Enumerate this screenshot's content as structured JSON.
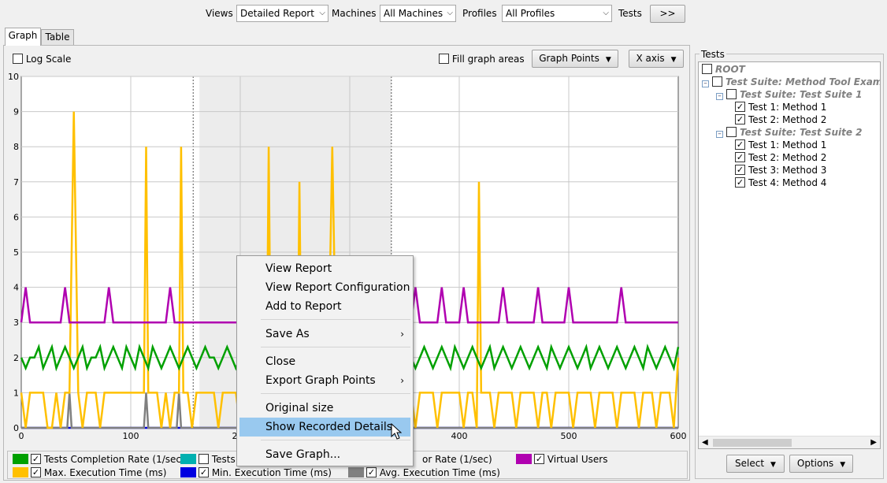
{
  "toolbar": {
    "views_label": "Views",
    "views_value": "Detailed Report",
    "machines_label": "Machines",
    "machines_value": "All Machines",
    "profiles_label": "Profiles",
    "profiles_value": "All Profiles",
    "tests_label": "Tests",
    "tests_button": ">>"
  },
  "tabs": [
    {
      "label": "Graph",
      "active": true
    },
    {
      "label": "Table",
      "active": false
    }
  ],
  "graph_options": {
    "log_scale_label": "Log Scale",
    "log_scale_checked": false,
    "fill_areas_label": "Fill graph areas",
    "fill_areas_checked": false,
    "graph_points_button": "Graph Points",
    "x_axis_button": "X axis"
  },
  "chart_data": {
    "type": "line",
    "xlim": [
      0,
      600
    ],
    "ylim": [
      0,
      10
    ],
    "x_ticks": [
      "0",
      "100",
      "200",
      "300",
      "400",
      "500",
      "600"
    ],
    "y_ticks": [
      "0",
      "1",
      "2",
      "3",
      "4",
      "5",
      "6",
      "7",
      "8",
      "9",
      "10"
    ],
    "shaded_region": [
      157,
      338
    ],
    "series": [
      {
        "name": "Virtual Users",
        "color": "#b000b0",
        "x": [
          0,
          4,
          8,
          12,
          16,
          20,
          24,
          28,
          32,
          36,
          40,
          44,
          48,
          52,
          56,
          60,
          64,
          68,
          72,
          76,
          80,
          84,
          88,
          92,
          96,
          100,
          104,
          108,
          112,
          116,
          120,
          124,
          128,
          132,
          136,
          140,
          144,
          148,
          152,
          156,
          160,
          164,
          168,
          172,
          176,
          180,
          184,
          188,
          192,
          196,
          200,
          204,
          208,
          212,
          216,
          220,
          224,
          228,
          232,
          236,
          240,
          244,
          248,
          252,
          256,
          260,
          264,
          268,
          272,
          276,
          280,
          284,
          288,
          292,
          296,
          300,
          304,
          308,
          312,
          316,
          320,
          324,
          328,
          332,
          336,
          340,
          344,
          348,
          352,
          356,
          360,
          364,
          368,
          372,
          376,
          380,
          384,
          388,
          392,
          396,
          400,
          404,
          408,
          412,
          416,
          420,
          424,
          428,
          432,
          436,
          440,
          444,
          448,
          452,
          456,
          460,
          464,
          468,
          472,
          476,
          480,
          484,
          488,
          492,
          496,
          500,
          504,
          508,
          512,
          516,
          520,
          524,
          528,
          532,
          536,
          540,
          544,
          548,
          552,
          556,
          560,
          564,
          568,
          572,
          576,
          580,
          584,
          588,
          592,
          596,
          600
        ],
        "values": [
          3,
          4,
          3,
          3,
          3,
          3,
          3,
          3,
          3,
          3,
          4,
          3,
          3,
          3,
          3,
          3,
          3,
          3,
          3,
          3,
          4,
          3,
          3,
          3,
          3,
          3,
          3,
          3,
          3,
          3,
          3,
          3,
          3,
          3,
          4,
          3,
          3,
          3,
          3,
          3,
          3,
          3,
          3,
          3,
          3,
          3,
          3,
          3,
          3,
          3,
          3,
          3,
          3,
          3,
          3,
          3,
          3,
          3,
          3,
          3,
          3,
          3,
          3,
          3,
          4,
          3,
          3,
          3,
          3,
          3,
          3,
          3,
          3,
          3,
          3,
          3,
          3,
          3,
          3,
          3,
          3,
          3,
          3,
          3,
          3,
          3,
          3,
          3,
          3,
          3,
          4,
          3,
          3,
          3,
          3,
          3,
          4,
          3,
          3,
          3,
          3,
          4,
          3,
          3,
          3,
          3,
          3,
          3,
          3,
          3,
          4,
          3,
          3,
          3,
          3,
          3,
          3,
          3,
          4,
          3,
          3,
          3,
          3,
          3,
          3,
          4,
          3,
          3,
          3,
          3,
          3,
          3,
          3,
          3,
          3,
          3,
          3,
          4,
          3,
          3,
          3,
          3,
          3,
          3,
          3,
          3,
          3,
          3,
          3,
          3,
          3
        ]
      },
      {
        "name": "Tests Completion Rate (1/sec)",
        "color": "#00a000",
        "x": [
          0,
          4,
          8,
          12,
          16,
          20,
          24,
          28,
          32,
          36,
          40,
          44,
          48,
          52,
          56,
          60,
          64,
          68,
          72,
          76,
          80,
          84,
          88,
          92,
          96,
          100,
          104,
          108,
          112,
          116,
          120,
          124,
          128,
          132,
          136,
          140,
          144,
          148,
          152,
          156,
          160,
          164,
          168,
          172,
          176,
          180,
          184,
          188,
          192,
          196,
          200,
          204,
          208,
          212,
          216,
          220,
          224,
          228,
          232,
          236,
          240,
          244,
          248,
          252,
          256,
          260,
          264,
          268,
          272,
          276,
          280,
          284,
          288,
          292,
          296,
          300,
          304,
          308,
          312,
          316,
          320,
          324,
          328,
          332,
          336,
          340,
          344,
          348,
          352,
          356,
          360,
          364,
          368,
          372,
          376,
          380,
          384,
          388,
          392,
          396,
          400,
          404,
          408,
          412,
          416,
          420,
          424,
          428,
          432,
          436,
          440,
          444,
          448,
          452,
          456,
          460,
          464,
          468,
          472,
          476,
          480,
          484,
          488,
          492,
          496,
          500,
          504,
          508,
          512,
          516,
          520,
          524,
          528,
          532,
          536,
          540,
          544,
          548,
          552,
          556,
          560,
          564,
          568,
          572,
          576,
          580,
          584,
          588,
          592,
          596,
          600
        ],
        "values": [
          2,
          1.7,
          2,
          2,
          2.3,
          1.7,
          2,
          2.3,
          1.7,
          2,
          2.3,
          2,
          1.7,
          2,
          2.3,
          1.7,
          2,
          2,
          2.3,
          1.7,
          2,
          2.3,
          2,
          1.7,
          2.3,
          2,
          1.7,
          2.3,
          2,
          1.7,
          2.3,
          2,
          1.7,
          2,
          2.3,
          2,
          1.7,
          2,
          2.3,
          2,
          1.7,
          2,
          2.3,
          2,
          2,
          1.7,
          2,
          2.3,
          2,
          1.7,
          2,
          2.3,
          1.7,
          2,
          2.3,
          2,
          1.7,
          2,
          2.3,
          2,
          1.7,
          2,
          2.3,
          2,
          2,
          1.7,
          2,
          2.3,
          2,
          1.7,
          2.3,
          2,
          1.7,
          2,
          2.3,
          2,
          1.7,
          2,
          2.3,
          2,
          1.7,
          2.3,
          2,
          1.7,
          2,
          2.3,
          1.7,
          2,
          2.3,
          2,
          1.7,
          2,
          2.3,
          2,
          1.7,
          2,
          2.3,
          2,
          1.7,
          2.3,
          2,
          1.7,
          2,
          2.3,
          2,
          1.7,
          2,
          2.3,
          1.7,
          2,
          2.3,
          2,
          1.7,
          2,
          2.3,
          2,
          1.7,
          2,
          2.3,
          2,
          1.7,
          2.3,
          2,
          1.7,
          2,
          2.3,
          2,
          1.7,
          2,
          2.3,
          1.7,
          2,
          2.3,
          2,
          1.7,
          2,
          2.3,
          2,
          1.7,
          2,
          2.3,
          2,
          1.7,
          2.3,
          2,
          1.7,
          2,
          2.3,
          2,
          1.7,
          2.3
        ]
      },
      {
        "name": "Max. Execution Time (ms)",
        "color": "#ffc000",
        "x": [
          0,
          4,
          8,
          12,
          16,
          20,
          24,
          28,
          32,
          36,
          40,
          44,
          48,
          52,
          56,
          60,
          64,
          68,
          72,
          76,
          80,
          84,
          88,
          92,
          96,
          100,
          104,
          108,
          112,
          114,
          116,
          120,
          124,
          128,
          132,
          136,
          140,
          144,
          146,
          148,
          152,
          156,
          160,
          164,
          168,
          172,
          176,
          180,
          184,
          188,
          192,
          196,
          200,
          204,
          208,
          212,
          216,
          220,
          224,
          226,
          228,
          232,
          236,
          240,
          244,
          248,
          252,
          254,
          256,
          260,
          264,
          268,
          272,
          276,
          280,
          284,
          288,
          292,
          296,
          300,
          304,
          308,
          312,
          316,
          320,
          324,
          328,
          332,
          336,
          340,
          344,
          348,
          352,
          356,
          360,
          364,
          368,
          372,
          376,
          380,
          384,
          388,
          392,
          396,
          400,
          404,
          408,
          412,
          416,
          418,
          420,
          424,
          428,
          432,
          436,
          440,
          444,
          448,
          452,
          456,
          460,
          464,
          468,
          472,
          476,
          480,
          484,
          488,
          492,
          496,
          500,
          504,
          508,
          512,
          516,
          520,
          524,
          528,
          532,
          536,
          540,
          544,
          548,
          552,
          556,
          560,
          564,
          568,
          572,
          576,
          580,
          584,
          588,
          592,
          596,
          600
        ],
        "values": [
          1,
          0,
          1,
          1,
          1,
          1,
          0,
          0,
          1,
          0,
          1,
          1,
          9,
          1,
          0,
          1,
          1,
          1,
          0,
          1,
          1,
          1,
          1,
          1,
          1,
          1,
          1,
          1,
          1,
          8,
          1,
          1,
          1,
          0,
          1,
          0,
          1,
          1,
          8,
          1,
          1,
          0,
          1,
          1,
          1,
          1,
          1,
          0,
          1,
          1,
          1,
          1,
          0,
          1,
          1,
          1,
          1,
          0,
          1,
          8,
          1,
          1,
          1,
          0,
          1,
          1,
          0,
          7,
          1,
          1,
          1,
          0,
          1,
          1,
          1,
          8,
          1,
          1,
          1,
          0,
          1,
          1,
          1,
          1,
          1,
          1,
          0,
          1,
          1,
          1,
          0,
          1,
          1,
          1,
          0,
          1,
          1,
          1,
          1,
          0,
          1,
          1,
          1,
          1,
          1,
          0,
          1,
          1,
          0,
          7,
          1,
          1,
          1,
          0,
          1,
          1,
          1,
          1,
          0,
          1,
          1,
          1,
          1,
          0,
          1,
          1,
          0,
          1,
          1,
          1,
          1,
          0,
          1,
          1,
          1,
          1,
          0,
          1,
          1,
          1,
          1,
          0,
          1,
          1,
          1,
          1,
          0,
          1,
          1,
          1,
          0,
          1,
          1,
          1,
          0,
          2
        ]
      },
      {
        "name": "Avg. Execution Time (ms)",
        "color": "#808080",
        "x": [
          0,
          40,
          42,
          44,
          46,
          48,
          80,
          110,
          112,
          114,
          116,
          118,
          140,
          142,
          144,
          146,
          148,
          600
        ],
        "values": [
          0,
          0,
          0,
          1,
          0,
          0,
          0,
          0,
          0,
          1,
          0,
          0,
          0,
          0,
          1,
          0,
          0,
          0
        ]
      },
      {
        "name": "Min. Execution Time (ms)",
        "color": "#0000e0",
        "x": [
          0,
          600
        ],
        "values": [
          0,
          0
        ]
      }
    ]
  },
  "legend": [
    {
      "label": "Tests Completion Rate (1/sec)",
      "color": "#00a000",
      "checked": true
    },
    {
      "label": "Tests",
      "color": "#00b0b0",
      "checked": false
    },
    {
      "label": "or Rate (1/sec)",
      "color": "#ffffff",
      "checked": null
    },
    {
      "label": "Virtual Users",
      "color": "#b000b0",
      "checked": true
    },
    {
      "label": "Max. Execution Time (ms)",
      "color": "#ffc000",
      "checked": true
    },
    {
      "label": "Min. Execution Time (ms)",
      "color": "#0000e0",
      "checked": true
    },
    {
      "label": "Avg. Execution Time (ms)",
      "color": "#808080",
      "checked": true
    }
  ],
  "context_menu": {
    "items": [
      {
        "label": "View Report"
      },
      {
        "label": "View Report Configuration"
      },
      {
        "label": "Add to Report"
      },
      {
        "label": "Save As",
        "submenu": true
      },
      {
        "label": "Close"
      },
      {
        "label": "Export Graph Points",
        "submenu": true
      },
      {
        "label": "Original size"
      },
      {
        "label": "Show Recorded Details",
        "highlighted": true
      },
      {
        "label": "Save Graph..."
      }
    ]
  },
  "tests_panel": {
    "title": "Tests",
    "root": "ROOT",
    "suite": "Test Suite: Method Tool Example",
    "sub_suites": [
      {
        "name": "Test Suite: Test Suite 1",
        "tests": [
          "Test 1: Method 1",
          "Test 2: Method 2"
        ]
      },
      {
        "name": "Test Suite: Test Suite 2",
        "tests": [
          "Test 1: Method 1",
          "Test 2: Method 2",
          "Test 3: Method 3",
          "Test 4: Method 4"
        ]
      }
    ],
    "select_button": "Select",
    "options_button": "Options"
  }
}
